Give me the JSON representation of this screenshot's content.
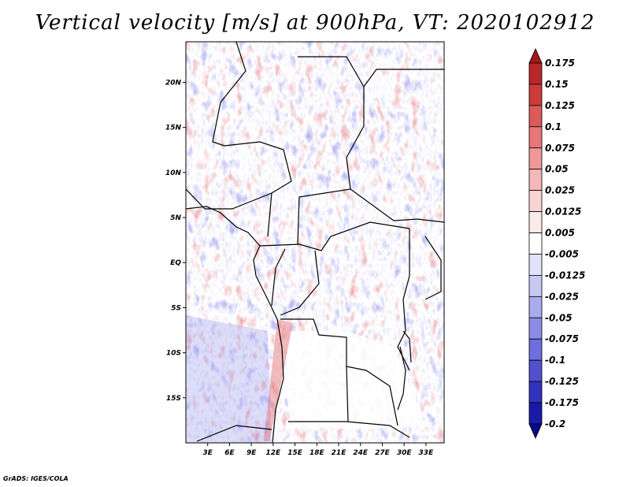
{
  "title": "Vertical velocity [m/s] at 900hPa, VT: 2020102912",
  "footer": "GrADS: IGES/COLA",
  "map": {
    "lon_range": [
      0,
      35.5
    ],
    "lat_range": [
      -20,
      24.5
    ],
    "lat_ticks": [
      {
        "value": 20,
        "label": "20N"
      },
      {
        "value": 15,
        "label": "15N"
      },
      {
        "value": 10,
        "label": "10N"
      },
      {
        "value": 5,
        "label": "5N"
      },
      {
        "value": 0,
        "label": "EQ"
      },
      {
        "value": -5,
        "label": "5S"
      },
      {
        "value": -10,
        "label": "10S"
      },
      {
        "value": -15,
        "label": "15S"
      }
    ],
    "lon_ticks": [
      {
        "value": 3,
        "label": "3E"
      },
      {
        "value": 6,
        "label": "6E"
      },
      {
        "value": 9,
        "label": "9E"
      },
      {
        "value": 12,
        "label": "12E"
      },
      {
        "value": 15,
        "label": "15E"
      },
      {
        "value": 18,
        "label": "18E"
      },
      {
        "value": 21,
        "label": "21E"
      },
      {
        "value": 24,
        "label": "24E"
      },
      {
        "value": 27,
        "label": "27E"
      },
      {
        "value": 30,
        "label": "30E"
      },
      {
        "value": 33,
        "label": "33E"
      }
    ]
  },
  "colorbar": {
    "labels": [
      "0.175",
      "0.15",
      "0.125",
      "0.1",
      "0.075",
      "0.05",
      "0.025",
      "0.0125",
      "0.005",
      "-0.005",
      "-0.0125",
      "-0.025",
      "-0.05",
      "-0.075",
      "-0.1",
      "-0.125",
      "-0.175",
      "-0.2"
    ],
    "colors": [
      "#a01818",
      "#b82828",
      "#cc3c3c",
      "#dc5a5a",
      "#e67878",
      "#ee9898",
      "#f4b8b8",
      "#f8d4d4",
      "#fbeaea",
      "#ffffff",
      "#e2e2fb",
      "#c8c8f5",
      "#aaaaee",
      "#8c8ce6",
      "#6e6edd",
      "#5050d0",
      "#3232c0",
      "#1a1aa6",
      "#0a0a8c"
    ]
  }
}
